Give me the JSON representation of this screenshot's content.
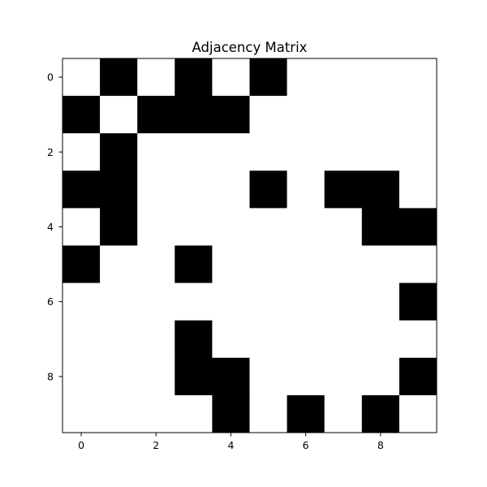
{
  "chart_data": {
    "type": "heatmap",
    "title": "Adjacency Matrix",
    "xlabel": "",
    "ylabel": "",
    "colormap": {
      "1": "#000000",
      "0": "#ffffff"
    },
    "rows": [
      0,
      1,
      2,
      3,
      4,
      5,
      6,
      7,
      8,
      9
    ],
    "cols": [
      0,
      1,
      2,
      3,
      4,
      5,
      6,
      7,
      8,
      9
    ],
    "xticks": [
      "0",
      "2",
      "4",
      "6",
      "8"
    ],
    "yticks": [
      "0",
      "2",
      "4",
      "6",
      "8"
    ],
    "xlim": [
      -0.5,
      9.5
    ],
    "ylim": [
      9.5,
      -0.5
    ],
    "grid": false,
    "values": [
      [
        0,
        1,
        0,
        1,
        0,
        1,
        0,
        0,
        0,
        0
      ],
      [
        1,
        0,
        1,
        1,
        1,
        0,
        0,
        0,
        0,
        0
      ],
      [
        0,
        1,
        0,
        0,
        0,
        0,
        0,
        0,
        0,
        0
      ],
      [
        1,
        1,
        0,
        0,
        0,
        1,
        0,
        1,
        1,
        0
      ],
      [
        0,
        1,
        0,
        0,
        0,
        0,
        0,
        0,
        1,
        1
      ],
      [
        1,
        0,
        0,
        1,
        0,
        0,
        0,
        0,
        0,
        0
      ],
      [
        0,
        0,
        0,
        0,
        0,
        0,
        0,
        0,
        0,
        1
      ],
      [
        0,
        0,
        0,
        1,
        0,
        0,
        0,
        0,
        0,
        0
      ],
      [
        0,
        0,
        0,
        1,
        1,
        0,
        0,
        0,
        0,
        1
      ],
      [
        0,
        0,
        0,
        0,
        1,
        0,
        1,
        0,
        1,
        0
      ]
    ]
  }
}
